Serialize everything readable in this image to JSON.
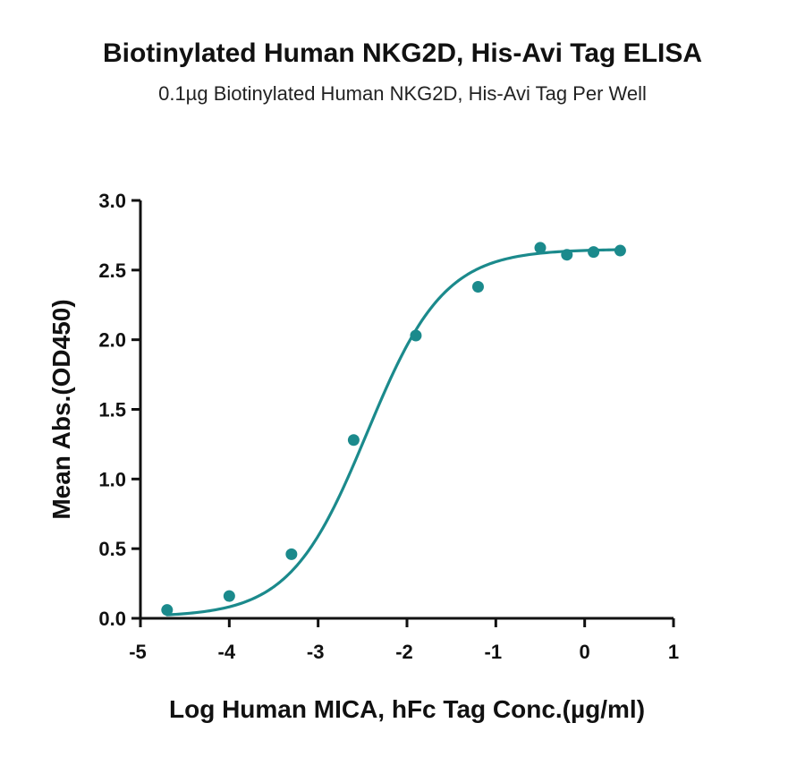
{
  "chart_data": {
    "type": "scatter",
    "title": "Biotinylated Human NKG2D, His-Avi Tag ELISA",
    "subtitle": "0.1µg Biotinylated Human NKG2D, His-Avi Tag Per Well",
    "xlabel": "Log Human MICA, hFc Tag Conc.(µg/ml)",
    "ylabel": "Mean Abs.(OD450)",
    "xlim": [
      -5,
      1
    ],
    "ylim": [
      0,
      3
    ],
    "xticks": [
      "-5",
      "-4",
      "-3",
      "-2",
      "-1",
      "0",
      "1"
    ],
    "yticks": [
      "0.0",
      "0.5",
      "1.0",
      "1.5",
      "2.0",
      "2.5",
      "3.0"
    ],
    "grid": false,
    "series": [
      {
        "x": [
          -4.7,
          -4.0,
          -3.3,
          -2.6,
          -1.9,
          -1.2,
          -0.5,
          -0.2,
          0.1,
          0.4
        ],
        "y": [
          0.06,
          0.16,
          0.46,
          1.28,
          2.03,
          2.38,
          2.66,
          2.61,
          2.63,
          2.64
        ],
        "color": "#1b8a8c",
        "fit": "four-parameter logistic",
        "fit_params": {
          "bottom": 0.01,
          "top": 2.65,
          "log_ec50": -2.45,
          "hill_slope": 1.0
        }
      }
    ]
  }
}
